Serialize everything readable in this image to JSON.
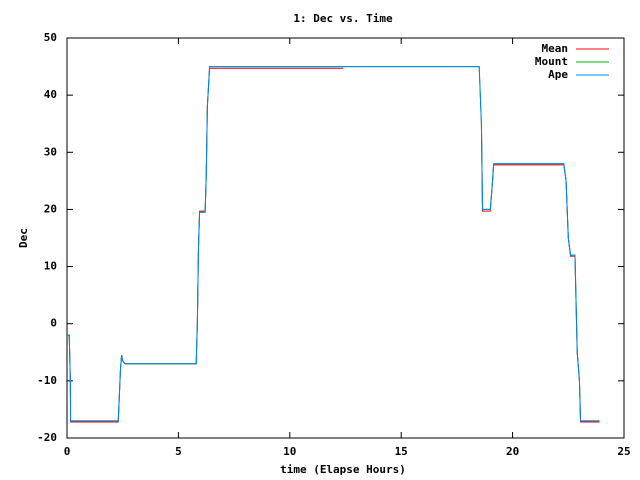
{
  "chart_data": {
    "type": "line",
    "title": "1: Dec vs. Time",
    "x_label": "time (Elapse Hours)",
    "y_label": "Dec",
    "x": [
      0,
      0.1,
      0.15,
      0.16,
      2.3,
      2.4,
      2.45,
      2.5,
      2.6,
      5.8,
      5.85,
      5.9,
      5.95,
      6.2,
      6.25,
      6.3,
      6.4,
      12.4,
      12.41,
      18.5,
      18.6,
      18.65,
      19.0,
      19.1,
      19.15,
      22.3,
      22.4,
      22.5,
      22.6,
      22.8,
      22.9,
      23.0,
      23.05,
      23.9
    ],
    "series": [
      {
        "name": "Mean",
        "color": "#ff0000",
        "values": [
          -2,
          -2,
          -10,
          -17.2,
          -17.2,
          -8,
          -5.5,
          -6.5,
          -7,
          -7,
          0,
          13,
          19.7,
          19.7,
          26,
          38,
          44.7,
          44.7,
          null,
          null,
          35,
          19.7,
          19.7,
          25,
          27.8,
          27.8,
          25,
          15,
          11.8,
          11.8,
          -5,
          -10,
          -17.2,
          -17.2
        ]
      },
      {
        "name": "Mount",
        "color": "#00c000",
        "values": [
          -2,
          -2,
          -10,
          -17,
          -17,
          -8,
          -5.5,
          -6.5,
          -7,
          -7,
          0,
          13,
          19.5,
          19.5,
          26,
          38,
          45,
          45,
          45,
          45,
          35,
          20,
          20,
          25,
          28,
          28,
          25,
          15,
          12,
          12,
          -5,
          -10,
          -17,
          -17
        ]
      },
      {
        "name": "Ape",
        "color": "#0080ff",
        "values": [
          -2,
          -2,
          -10,
          -17,
          -17,
          -8,
          -5.5,
          -6.5,
          -7,
          -7,
          0,
          13,
          19.5,
          19.5,
          26,
          38,
          45,
          45,
          45,
          45,
          35,
          20,
          20,
          25,
          28,
          28,
          25,
          15,
          12,
          12,
          -5,
          -10,
          -17,
          -17
        ]
      }
    ],
    "xlim": [
      0,
      25
    ],
    "xticks": [
      0,
      5,
      10,
      15,
      20,
      25
    ],
    "ylim": [
      -20,
      50
    ],
    "yticks": [
      -20,
      -10,
      0,
      10,
      20,
      30,
      40,
      50
    ],
    "legend": "top-right"
  }
}
